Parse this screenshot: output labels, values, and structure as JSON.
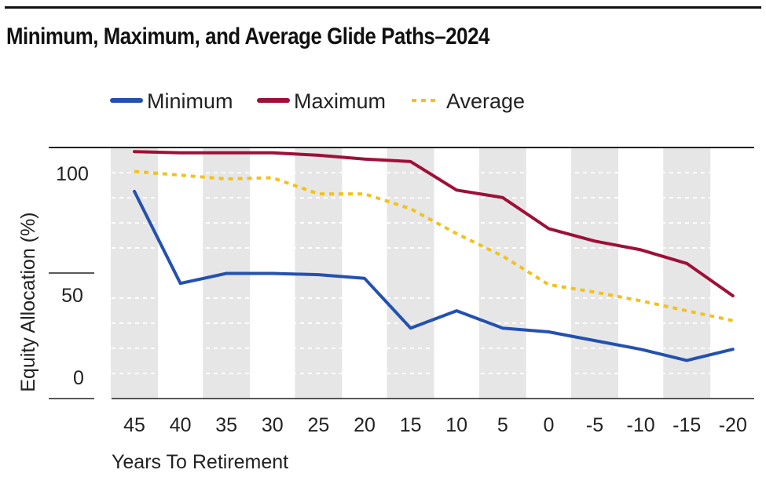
{
  "chart_data": {
    "type": "line",
    "title": "Minimum, Maximum, and Average Glide Paths–2024",
    "xlabel": "Years To Retirement",
    "ylabel": "Equity Allocation (%)",
    "categories": [
      "45",
      "40",
      "35",
      "30",
      "25",
      "20",
      "15",
      "10",
      "5",
      "0",
      "-5",
      "-10",
      "-15",
      "-20"
    ],
    "y_ticks": [
      "100",
      "50",
      "0"
    ],
    "ylim": [
      0,
      100
    ],
    "grid": true,
    "legend_position": "top",
    "series": [
      {
        "name": "Minimum",
        "color": "#2451b0",
        "style": "solid",
        "values": [
          83,
          46,
          50,
          50,
          49.5,
          48,
          28,
          35,
          28,
          26.5,
          23,
          19.5,
          15,
          19.5
        ]
      },
      {
        "name": "Maximum",
        "color": "#9e1038",
        "style": "solid",
        "values": [
          99,
          98.5,
          98.5,
          98.5,
          97.5,
          96,
          95,
          83.5,
          80.5,
          68,
          63,
          59.5,
          54,
          41
        ]
      },
      {
        "name": "Average",
        "color": "#f2c21b",
        "style": "dotted",
        "values": [
          91,
          89.5,
          88,
          88.5,
          82,
          82,
          76,
          66,
          57,
          45.5,
          42.5,
          39,
          35,
          31
        ]
      }
    ]
  }
}
